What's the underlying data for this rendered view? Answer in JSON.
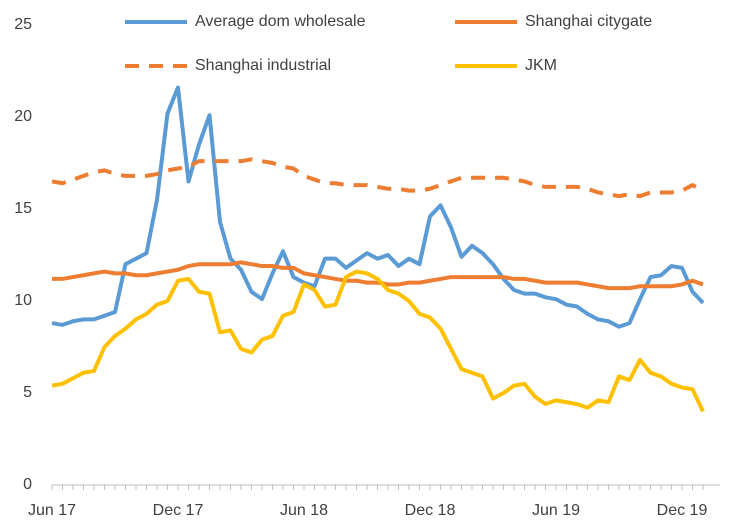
{
  "chart_data": {
    "type": "line",
    "categories": [
      "Jun 17",
      null,
      null,
      null,
      null,
      null,
      null,
      null,
      null,
      null,
      null,
      null,
      "Dec 17",
      null,
      null,
      null,
      null,
      null,
      null,
      null,
      null,
      null,
      null,
      null,
      "Jun 18",
      null,
      null,
      null,
      null,
      null,
      null,
      null,
      null,
      null,
      null,
      null,
      "Dec 18",
      null,
      null,
      null,
      null,
      null,
      null,
      null,
      null,
      null,
      null,
      null,
      "Jun 19",
      null,
      null,
      null,
      null,
      null,
      null,
      null,
      null,
      null,
      null,
      null,
      "Dec 19",
      null,
      null
    ],
    "ylim": [
      0,
      25
    ],
    "yticks": [
      0,
      5,
      10,
      15,
      20,
      25
    ],
    "grid": false,
    "series": [
      {
        "name": "Average dom wholesale",
        "color": "#5b9bd5",
        "style": "solid",
        "values": [
          8.8,
          8.7,
          8.9,
          9.0,
          9.0,
          9.2,
          9.4,
          12.0,
          12.3,
          12.6,
          15.5,
          20.2,
          21.6,
          16.5,
          18.5,
          20.1,
          14.3,
          12.3,
          11.7,
          10.5,
          10.1,
          11.5,
          12.7,
          11.3,
          11.0,
          10.8,
          12.3,
          12.3,
          11.8,
          12.2,
          12.6,
          12.3,
          12.5,
          11.9,
          12.3,
          12.0,
          14.6,
          15.2,
          14.0,
          12.4,
          13.0,
          12.6,
          12.0,
          11.2,
          10.6,
          10.4,
          10.4,
          10.2,
          10.1,
          9.8,
          9.7,
          9.3,
          9.0,
          8.9,
          8.6,
          8.8,
          10.1,
          11.3,
          11.4,
          11.9,
          11.8,
          10.5,
          9.9
        ]
      },
      {
        "name": "Shanghai citygate",
        "color": "#ed7d31",
        "style": "solid",
        "values": [
          11.2,
          11.2,
          11.3,
          11.4,
          11.5,
          11.6,
          11.5,
          11.5,
          11.4,
          11.4,
          11.5,
          11.6,
          11.7,
          11.9,
          12.0,
          12.0,
          12.0,
          12.0,
          12.1,
          12.0,
          11.9,
          11.9,
          11.8,
          11.8,
          11.5,
          11.4,
          11.3,
          11.2,
          11.1,
          11.1,
          11.0,
          11.0,
          10.9,
          10.9,
          11.0,
          11.0,
          11.1,
          11.2,
          11.3,
          11.3,
          11.3,
          11.3,
          11.3,
          11.3,
          11.2,
          11.2,
          11.1,
          11.0,
          11.0,
          11.0,
          11.0,
          10.9,
          10.8,
          10.7,
          10.7,
          10.7,
          10.8,
          10.8,
          10.8,
          10.8,
          10.9,
          11.1,
          10.9
        ]
      },
      {
        "name": "Shanghai industrial",
        "color": "#ed7d31",
        "style": "dashed",
        "values": [
          16.5,
          16.4,
          16.6,
          16.8,
          17.0,
          17.1,
          16.9,
          16.8,
          16.8,
          16.8,
          16.9,
          17.1,
          17.2,
          17.3,
          17.6,
          17.6,
          17.6,
          17.6,
          17.6,
          17.7,
          17.6,
          17.5,
          17.3,
          17.2,
          16.8,
          16.6,
          16.4,
          16.4,
          16.3,
          16.3,
          16.3,
          16.2,
          16.1,
          16.1,
          16.0,
          16.0,
          16.1,
          16.3,
          16.5,
          16.7,
          16.7,
          16.7,
          16.7,
          16.7,
          16.6,
          16.5,
          16.3,
          16.2,
          16.2,
          16.2,
          16.2,
          16.1,
          15.9,
          15.8,
          15.7,
          15.8,
          15.7,
          15.9,
          15.9,
          15.9,
          16.0,
          16.3,
          16.0
        ]
      },
      {
        "name": "JKM",
        "color": "#ffc000",
        "style": "solid",
        "values": [
          5.4,
          5.5,
          5.8,
          6.1,
          6.2,
          7.5,
          8.1,
          8.5,
          9.0,
          9.3,
          9.8,
          10.0,
          11.1,
          11.2,
          10.5,
          10.4,
          8.3,
          8.4,
          7.4,
          7.2,
          7.9,
          8.1,
          9.2,
          9.4,
          10.9,
          10.6,
          9.7,
          9.8,
          11.3,
          11.6,
          11.5,
          11.2,
          10.6,
          10.4,
          10.0,
          9.3,
          9.1,
          8.5,
          7.4,
          6.3,
          6.1,
          5.9,
          4.7,
          5.0,
          5.4,
          5.5,
          4.8,
          4.4,
          4.6,
          4.5,
          4.4,
          4.2,
          4.6,
          4.5,
          5.9,
          5.7,
          6.8,
          6.1,
          5.9,
          5.5,
          5.3,
          5.2,
          4.0
        ]
      }
    ]
  }
}
